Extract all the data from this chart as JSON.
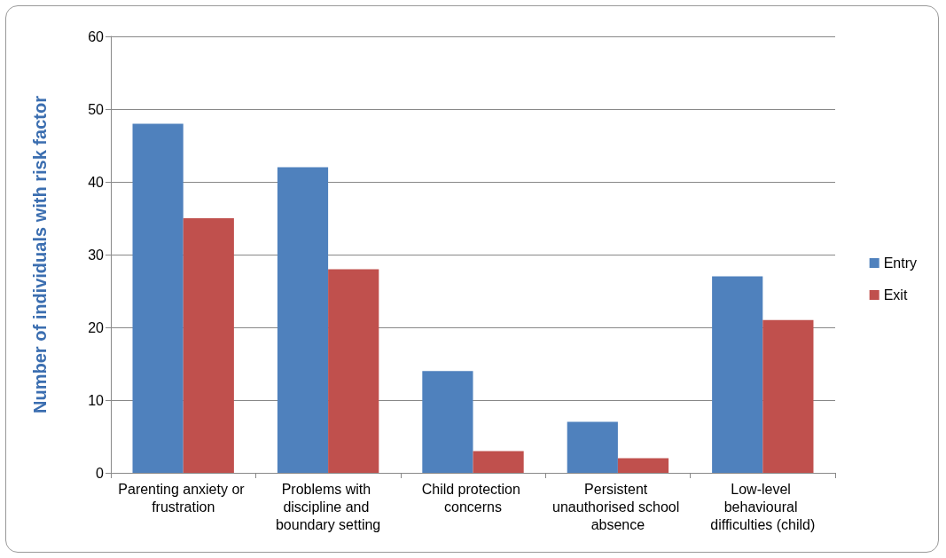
{
  "chart_data": {
    "type": "bar",
    "ylabel": "Number of individuals with risk factor",
    "categories": [
      "Parenting anxiety or frustration",
      "Problems with discipline and boundary setting",
      "Child protection concerns",
      "Persistent unauthorised school absence",
      "Low-level behavioural difficulties (child)"
    ],
    "series": [
      {
        "name": "Entry",
        "color": "#4f81bd",
        "values": [
          48,
          42,
          14,
          7,
          27
        ]
      },
      {
        "name": "Exit",
        "color": "#c0504d",
        "values": [
          35,
          28,
          3,
          2,
          21
        ]
      }
    ],
    "ylim": [
      0,
      60
    ],
    "yticks": [
      0,
      10,
      20,
      30,
      40,
      50,
      60
    ],
    "grid": "y",
    "legend": "right"
  }
}
